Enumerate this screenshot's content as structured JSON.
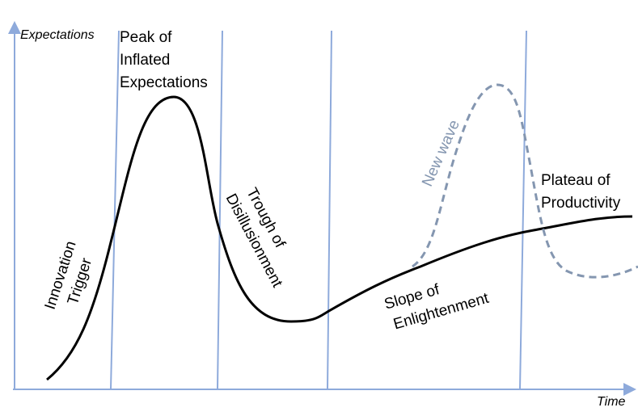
{
  "axes": {
    "y_label": "Expectations",
    "x_label": "Time"
  },
  "phases": [
    {
      "lines": [
        "Innovation",
        "Trigger"
      ]
    },
    {
      "lines": [
        "Peak of",
        "Inflated",
        "Expectations"
      ]
    },
    {
      "lines": [
        "Trough of",
        "Disillusionment"
      ]
    },
    {
      "lines": [
        "Slope of",
        "Enlightenment"
      ]
    },
    {
      "lines": [
        "Plateau of",
        "Productivity"
      ]
    }
  ],
  "new_wave": {
    "label": "New wave"
  }
}
